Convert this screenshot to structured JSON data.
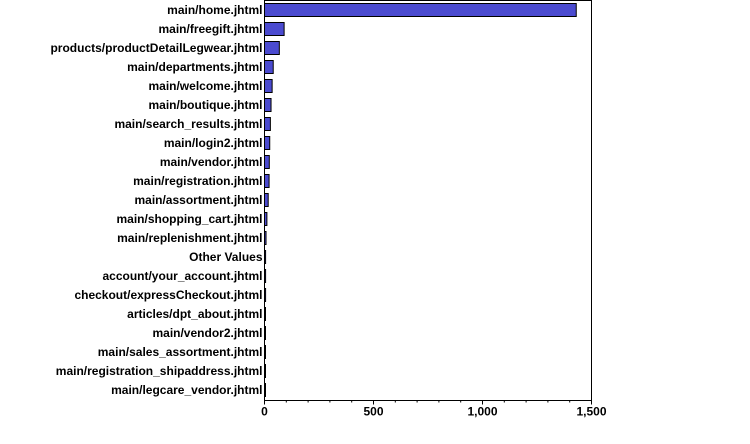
{
  "chart_data": {
    "type": "bar",
    "orientation": "horizontal",
    "categories": [
      "main/home.jhtml",
      "main/freegift.jhtml",
      "products/productDetailLegwear.jhtml",
      "main/departments.jhtml",
      "main/welcome.jhtml",
      "main/boutique.jhtml",
      "main/search_results.jhtml",
      "main/login2.jhtml",
      "main/vendor.jhtml",
      "main/registration.jhtml",
      "main/assortment.jhtml",
      "main/shopping_cart.jhtml",
      "main/replenishment.jhtml",
      "Other Values",
      "account/your_account.jhtml",
      "checkout/expressCheckout.jhtml",
      "articles/dpt_about.jhtml",
      "main/vendor2.jhtml",
      "main/sales_assortment.jhtml",
      "main/registration_shipaddress.jhtml",
      "main/legcare_vendor.jhtml"
    ],
    "values": [
      1430,
      90,
      68,
      40,
      35,
      30,
      27,
      24,
      22,
      21,
      17,
      11,
      7,
      5,
      5,
      5,
      4,
      4,
      4,
      4,
      4
    ],
    "xticks": [
      0,
      500,
      1000,
      1500
    ],
    "xtick_labels": [
      "0",
      "500",
      "1,000",
      "1,500"
    ],
    "xlim": [
      0,
      1500
    ],
    "title": "",
    "xlabel": "",
    "ylabel": "",
    "grid": false,
    "legend": "none",
    "bar_color": "#4B4BD0",
    "bar_edge_color": "#000000"
  }
}
